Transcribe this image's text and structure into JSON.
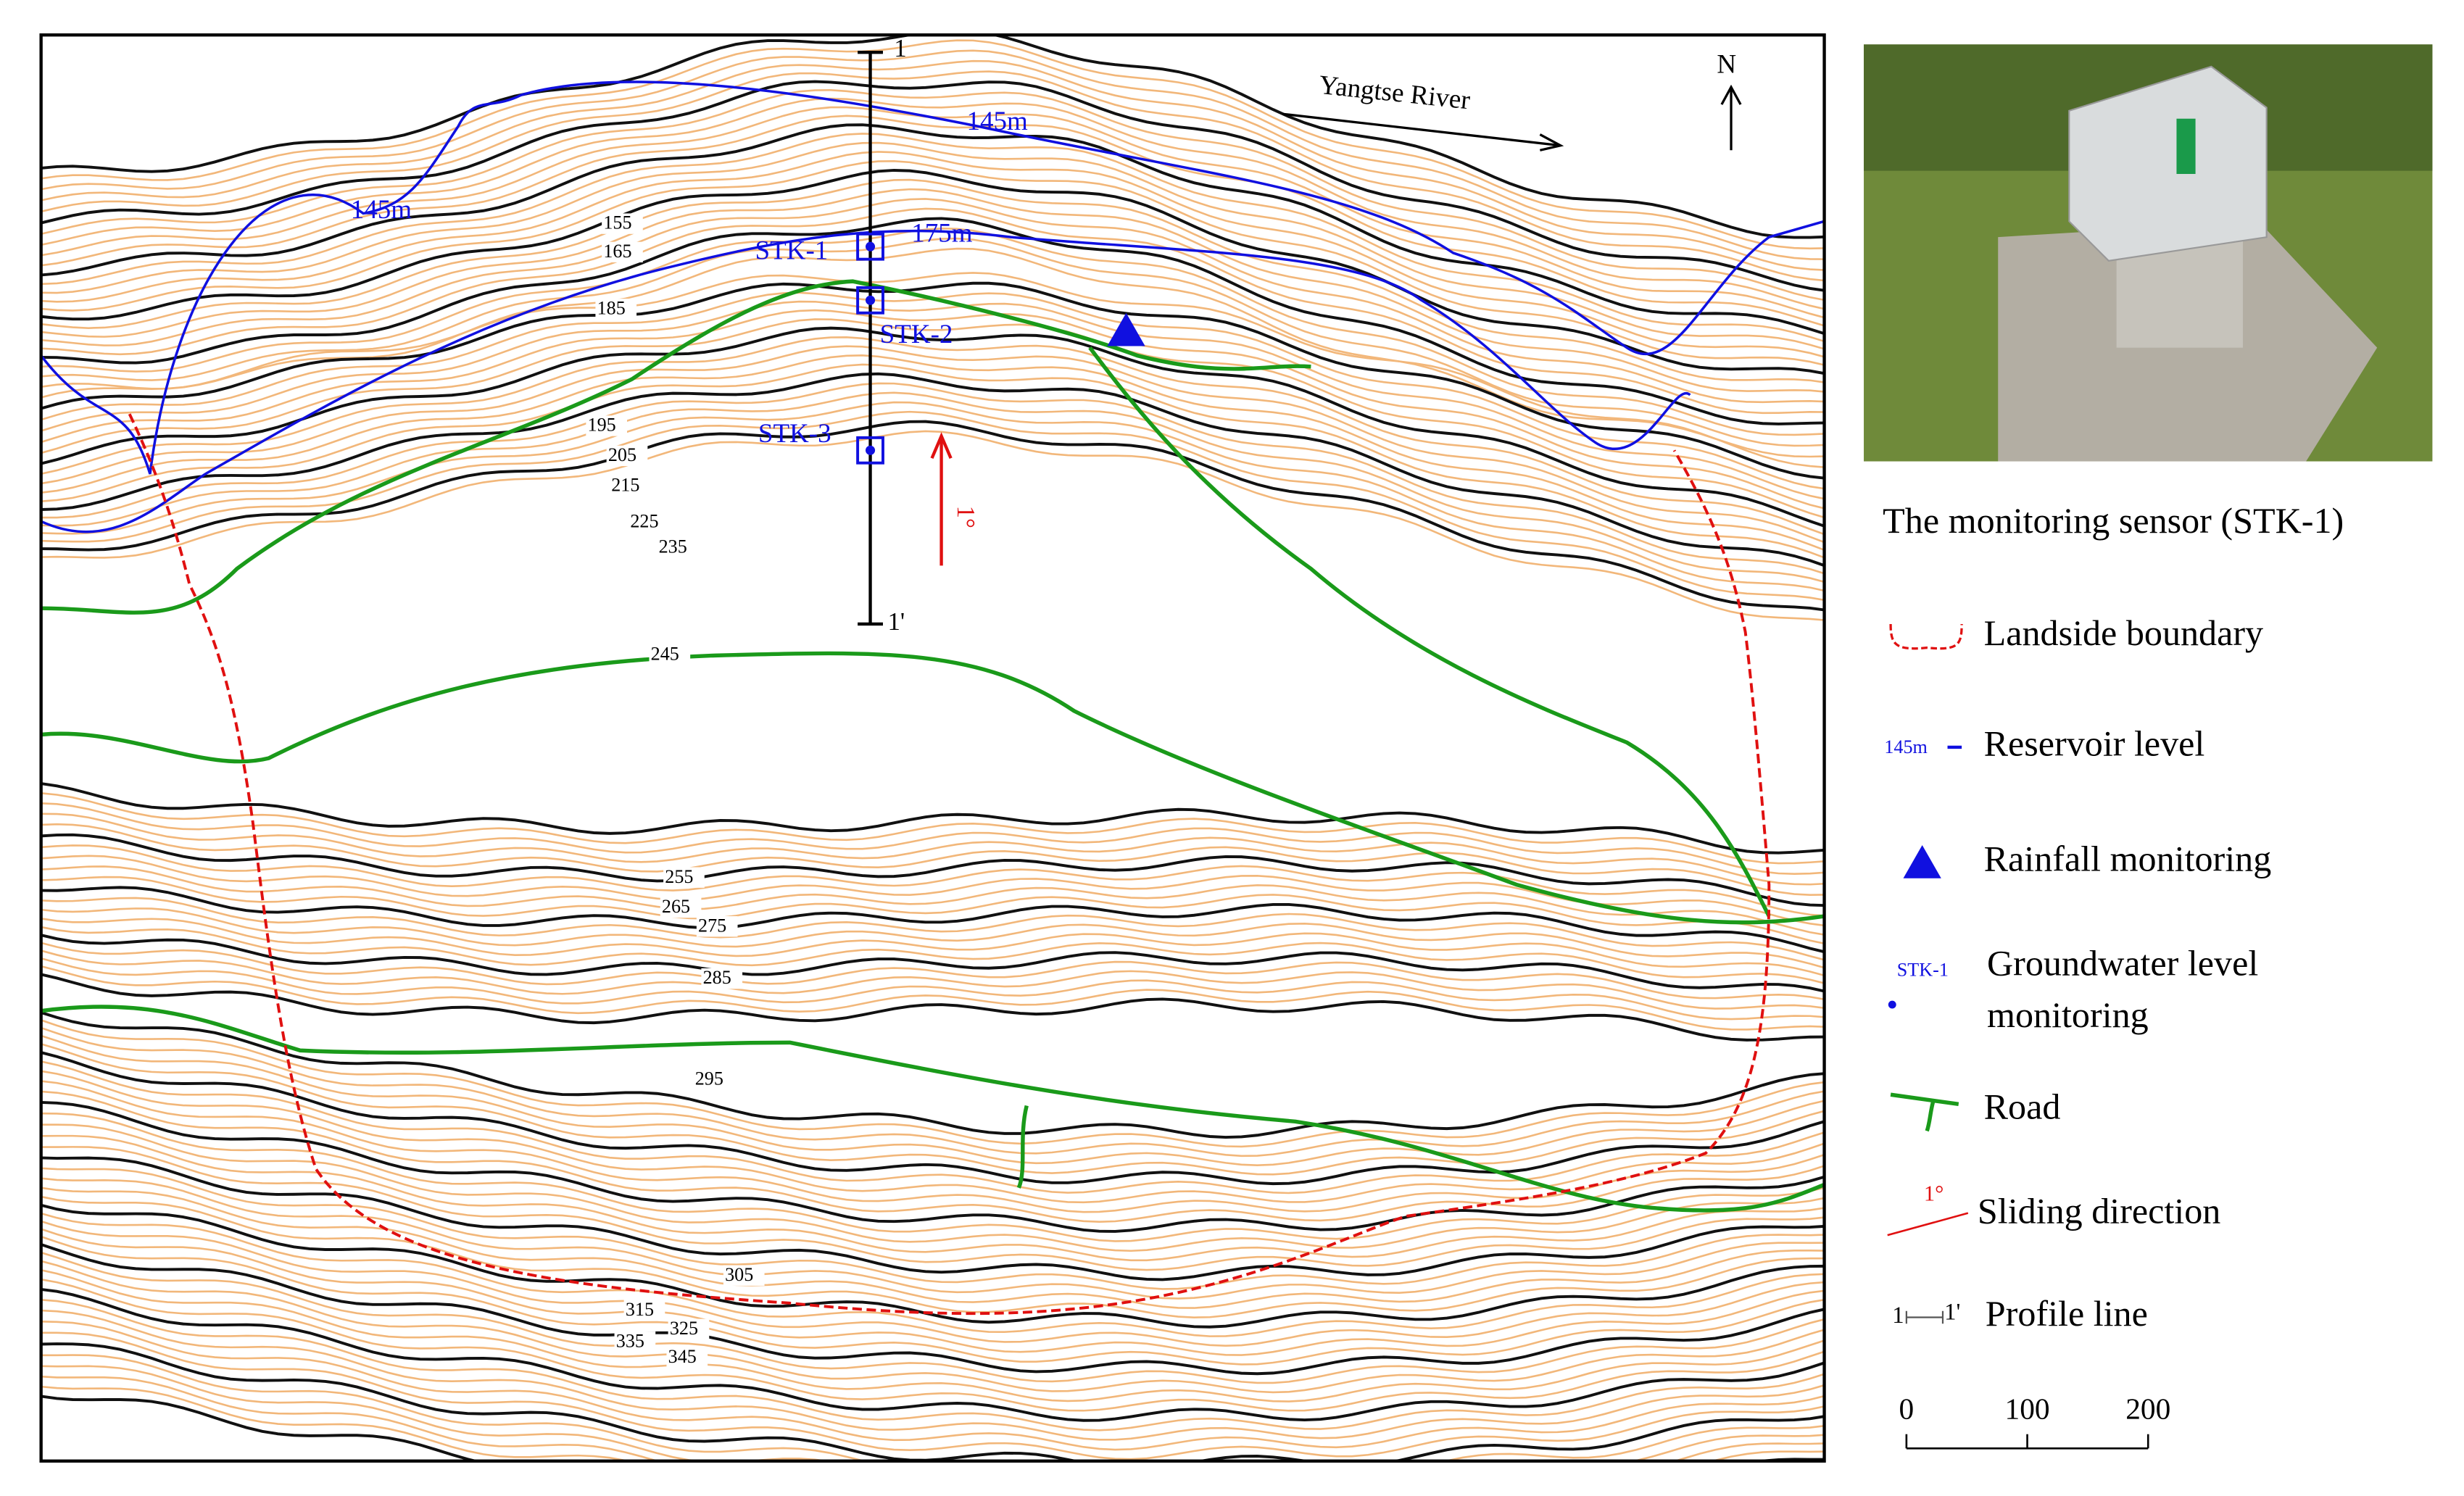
{
  "map": {
    "river_label": "Yangtse River",
    "north": "N",
    "reservoir_labels": [
      "145m",
      "145m",
      "175m"
    ],
    "contour_labels": [
      "155",
      "165",
      "185",
      "195",
      "205",
      "215",
      "225",
      "235",
      "245",
      "255",
      "265",
      "275",
      "285",
      "295",
      "305",
      "315",
      "325",
      "335",
      "345"
    ],
    "profile": {
      "start": "1",
      "end": "1'"
    },
    "sliding_angle": "1°",
    "wells": [
      "STK-1",
      "STK-2",
      "STK-3"
    ]
  },
  "photo": {
    "caption": "The monitoring sensor (STK-1)"
  },
  "legend": {
    "boundary": "Landside boundary",
    "reservoir": {
      "symbol": "145m",
      "label": "Reservoir level"
    },
    "rainfall": "Rainfall monitoring",
    "groundwater": {
      "symbol": "STK-1",
      "lines": [
        "Groundwater level",
        "monitoring"
      ]
    },
    "road": "Road",
    "sliding": {
      "symbol": "1°",
      "label": "Sliding direction"
    },
    "profile": {
      "start": "1",
      "end": "1'",
      "label": "Profile line"
    }
  },
  "scale_bar": {
    "ticks": [
      0,
      100,
      200
    ]
  }
}
